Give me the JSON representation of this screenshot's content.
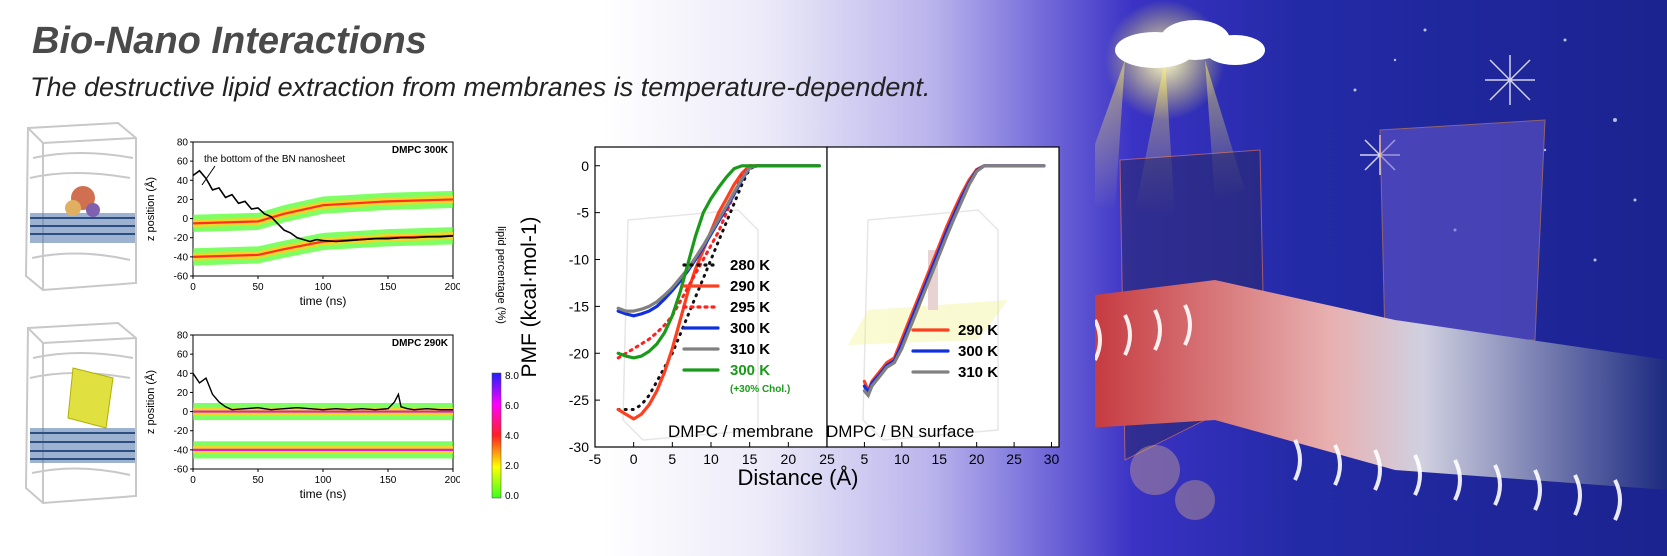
{
  "header": {
    "title": "Bio-Nano Interactions",
    "subtitle": "The destructive lipid extraction from membranes is temperature-dependent."
  },
  "colors": {
    "c280": "#111111",
    "c290": "#ff4020",
    "c295": "#ff2020",
    "c300": "#1030e0",
    "c310": "#808080",
    "c300chol": "#1a9a1a",
    "bn_line": "#000000"
  },
  "chart_data": [
    {
      "type": "scatter",
      "panel_label": "DMPC 300K",
      "annotation": "the bottom of the BN nanosheet",
      "xlabel": "time (ns)",
      "ylabel": "z position (Å)",
      "xlim": [
        0,
        200
      ],
      "ylim": [
        -60,
        80
      ],
      "xticks": [
        "0",
        "50",
        "100",
        "150",
        "200"
      ],
      "yticks": [
        "80",
        "60",
        "40",
        "20",
        "0",
        "-20",
        "-40",
        "-60"
      ],
      "series": [
        {
          "name": "the bottom of the BN nanosheet",
          "x": [
            0,
            5,
            10,
            15,
            20,
            25,
            30,
            35,
            40,
            45,
            50,
            55,
            60,
            65,
            70,
            75,
            80,
            85,
            90,
            95,
            100,
            110,
            120,
            130,
            140,
            150,
            160,
            170,
            180,
            190,
            200
          ],
          "y": [
            45,
            50,
            42,
            30,
            32,
            22,
            25,
            16,
            18,
            10,
            11,
            5,
            2,
            -5,
            -12,
            -15,
            -20,
            -22,
            -24,
            -22,
            -23,
            -24,
            -23,
            -22,
            -21,
            -21,
            -20,
            -20,
            -19,
            -19,
            -18
          ]
        }
      ],
      "density_bands": [
        {
          "x": [
            0,
            50,
            70,
            100,
            150,
            200
          ],
          "y": [
            -5,
            -3,
            5,
            14,
            18,
            20
          ]
        },
        {
          "x": [
            0,
            50,
            70,
            100,
            150,
            200
          ],
          "y": [
            -40,
            -38,
            -32,
            -24,
            -20,
            -18
          ]
        }
      ],
      "colorbar": {
        "label": "lipid percentage (%)",
        "ticks": [
          "8.0",
          "6.0",
          "4.0",
          "2.0",
          "0.0"
        ]
      }
    },
    {
      "type": "scatter",
      "panel_label": "DMPC 290K",
      "xlabel": "time (ns)",
      "ylabel": "z position (Å)",
      "xlim": [
        0,
        200
      ],
      "ylim": [
        -60,
        80
      ],
      "xticks": [
        "0",
        "50",
        "100",
        "150",
        "200"
      ],
      "yticks": [
        "80",
        "60",
        "40",
        "20",
        "0",
        "-20",
        "-40",
        "-60"
      ],
      "series": [
        {
          "name": "",
          "x": [
            0,
            5,
            10,
            15,
            20,
            25,
            30,
            40,
            50,
            60,
            70,
            80,
            90,
            100,
            110,
            120,
            130,
            140,
            150,
            155,
            158,
            160,
            165,
            170,
            180,
            190,
            200
          ],
          "y": [
            40,
            30,
            35,
            18,
            10,
            5,
            2,
            3,
            4,
            2,
            3,
            4,
            3,
            2,
            3,
            2,
            3,
            2,
            3,
            10,
            18,
            5,
            3,
            2,
            3,
            2,
            2
          ]
        }
      ],
      "density_bands": [
        {
          "x": [
            0,
            200
          ],
          "y": [
            0,
            0
          ]
        },
        {
          "x": [
            0,
            200
          ],
          "y": [
            -40,
            -40
          ]
        }
      ]
    },
    {
      "type": "line",
      "panel_label": "DMPC / membrane",
      "xlabel": "",
      "ylabel": "PMF (kcal·mol-1)",
      "xlim": [
        -5,
        25
      ],
      "ylim": [
        -30,
        2
      ],
      "xticks": [
        "-5",
        "0",
        "5",
        "10",
        "15",
        "20",
        "25"
      ],
      "yticks": [
        "0",
        "-5",
        "-10",
        "-15",
        "-20",
        "-25",
        "-30"
      ],
      "series": [
        {
          "name": "280 K",
          "key": "c280",
          "dash": true,
          "x": [
            -2,
            -1,
            0,
            1,
            2,
            3,
            4,
            5,
            6,
            7,
            8,
            9,
            10,
            11,
            12,
            13,
            14,
            15,
            16,
            18,
            20,
            22,
            24
          ],
          "y": [
            -26,
            -26,
            -26,
            -25.5,
            -24.5,
            -23,
            -21.5,
            -20,
            -18,
            -16,
            -14,
            -12,
            -10,
            -8,
            -6,
            -4,
            -2,
            -0.3,
            0,
            0,
            0,
            0,
            0
          ]
        },
        {
          "name": "290 K",
          "key": "c290",
          "dash": false,
          "x": [
            -2,
            -1,
            0,
            1,
            2,
            3,
            4,
            5,
            6,
            7,
            8,
            9,
            10,
            11,
            12,
            13,
            14,
            15,
            16,
            18,
            20,
            22,
            24
          ],
          "y": [
            -26,
            -26.5,
            -27,
            -26.5,
            -25.5,
            -24,
            -22,
            -19.5,
            -16.5,
            -13.5,
            -11,
            -9,
            -7,
            -5,
            -3.5,
            -2,
            -0.8,
            0,
            0,
            0,
            0,
            0,
            0
          ]
        },
        {
          "name": "295 K",
          "key": "c295",
          "dash": true,
          "x": [
            -2,
            -1,
            0,
            1,
            2,
            3,
            4,
            5,
            6,
            7,
            8,
            9,
            10,
            11,
            12,
            13,
            14,
            15,
            16,
            18,
            20,
            22,
            24
          ],
          "y": [
            -20.5,
            -20,
            -19.5,
            -19,
            -18.5,
            -17.8,
            -17,
            -16,
            -14.5,
            -13,
            -11.5,
            -10,
            -8.5,
            -7,
            -5,
            -3,
            -1,
            0,
            0,
            0,
            0,
            0,
            0
          ]
        },
        {
          "name": "300 K",
          "key": "c300",
          "dash": false,
          "x": [
            -2,
            -1,
            0,
            1,
            2,
            3,
            4,
            5,
            6,
            7,
            8,
            9,
            10,
            11,
            12,
            13,
            14,
            15,
            16,
            18,
            20,
            22,
            24
          ],
          "y": [
            -15.5,
            -15.8,
            -16,
            -15.8,
            -15.5,
            -15,
            -14.2,
            -13.3,
            -12.3,
            -11.2,
            -10,
            -8.7,
            -7.3,
            -5.9,
            -4.5,
            -3,
            -1.5,
            -0.2,
            0,
            0,
            0,
            0,
            0
          ]
        },
        {
          "name": "310 K",
          "key": "c310",
          "dash": false,
          "x": [
            -2,
            -1,
            0,
            1,
            2,
            3,
            4,
            5,
            6,
            7,
            8,
            9,
            10,
            11,
            12,
            13,
            14,
            15,
            16,
            18,
            20,
            22,
            24
          ],
          "y": [
            -15.2,
            -15.5,
            -15.5,
            -15.3,
            -15,
            -14.5,
            -13.8,
            -13,
            -12,
            -11,
            -9.8,
            -8.5,
            -7.1,
            -5.7,
            -4.3,
            -2.8,
            -1.4,
            -0.2,
            0,
            0,
            0,
            0,
            0
          ]
        },
        {
          "name": "300 K",
          "note": "(+30% Chol.)",
          "key": "c300chol",
          "dash": false,
          "x": [
            -2,
            -1,
            0,
            1,
            2,
            3,
            4,
            5,
            6,
            7,
            8,
            9,
            10,
            11,
            12,
            13,
            14,
            15,
            16,
            18,
            20,
            22,
            24
          ],
          "y": [
            -20,
            -20.3,
            -20.5,
            -20.3,
            -19.8,
            -19,
            -17.8,
            -16,
            -13.5,
            -10.5,
            -7.5,
            -5,
            -3.5,
            -2.3,
            -1.2,
            -0.3,
            0,
            0,
            0,
            0,
            0,
            0,
            0
          ]
        }
      ]
    },
    {
      "type": "line",
      "panel_label": "DMPC / BN surface",
      "xlabel": "Distance (Å)",
      "xlim": [
        0,
        31
      ],
      "ylim": [
        -30,
        2
      ],
      "xticks": [
        "5",
        "10",
        "15",
        "20",
        "25",
        "30"
      ],
      "series": [
        {
          "name": "290 K",
          "key": "c290",
          "x": [
            5,
            5.5,
            6,
            7,
            8,
            9,
            10,
            11,
            12,
            13,
            14,
            15,
            16,
            17,
            18,
            19,
            20,
            21,
            22,
            24,
            26,
            28,
            29
          ],
          "y": [
            -23,
            -24,
            -23,
            -22,
            -21,
            -20.5,
            -18.5,
            -16.5,
            -14.5,
            -12.5,
            -10.5,
            -8.5,
            -6.5,
            -4.7,
            -3,
            -1.5,
            -0.4,
            0,
            0,
            0,
            0,
            0,
            0
          ]
        },
        {
          "name": "300 K",
          "key": "c300",
          "x": [
            5,
            5.5,
            6,
            7,
            8,
            9,
            10,
            11,
            12,
            13,
            14,
            15,
            16,
            17,
            18,
            19,
            20,
            21,
            22,
            24,
            26,
            28,
            29
          ],
          "y": [
            -23.5,
            -24.2,
            -23.2,
            -22.3,
            -21.3,
            -20.8,
            -19,
            -17,
            -15,
            -13,
            -11,
            -9,
            -7,
            -5.2,
            -3.4,
            -1.8,
            -0.5,
            0,
            0,
            0,
            0,
            0,
            0
          ]
        },
        {
          "name": "310 K",
          "key": "c310",
          "x": [
            5,
            5.5,
            6,
            7,
            8,
            9,
            10,
            11,
            12,
            13,
            14,
            15,
            16,
            17,
            18,
            19,
            20,
            21,
            22,
            24,
            26,
            28,
            29
          ],
          "y": [
            -24,
            -24.5,
            -23.5,
            -22.5,
            -21.5,
            -21,
            -19.5,
            -17.5,
            -15.5,
            -13.5,
            -11.5,
            -9.5,
            -7.5,
            -5.6,
            -3.8,
            -2,
            -0.6,
            0,
            0,
            0,
            0,
            0,
            0
          ]
        }
      ]
    }
  ]
}
